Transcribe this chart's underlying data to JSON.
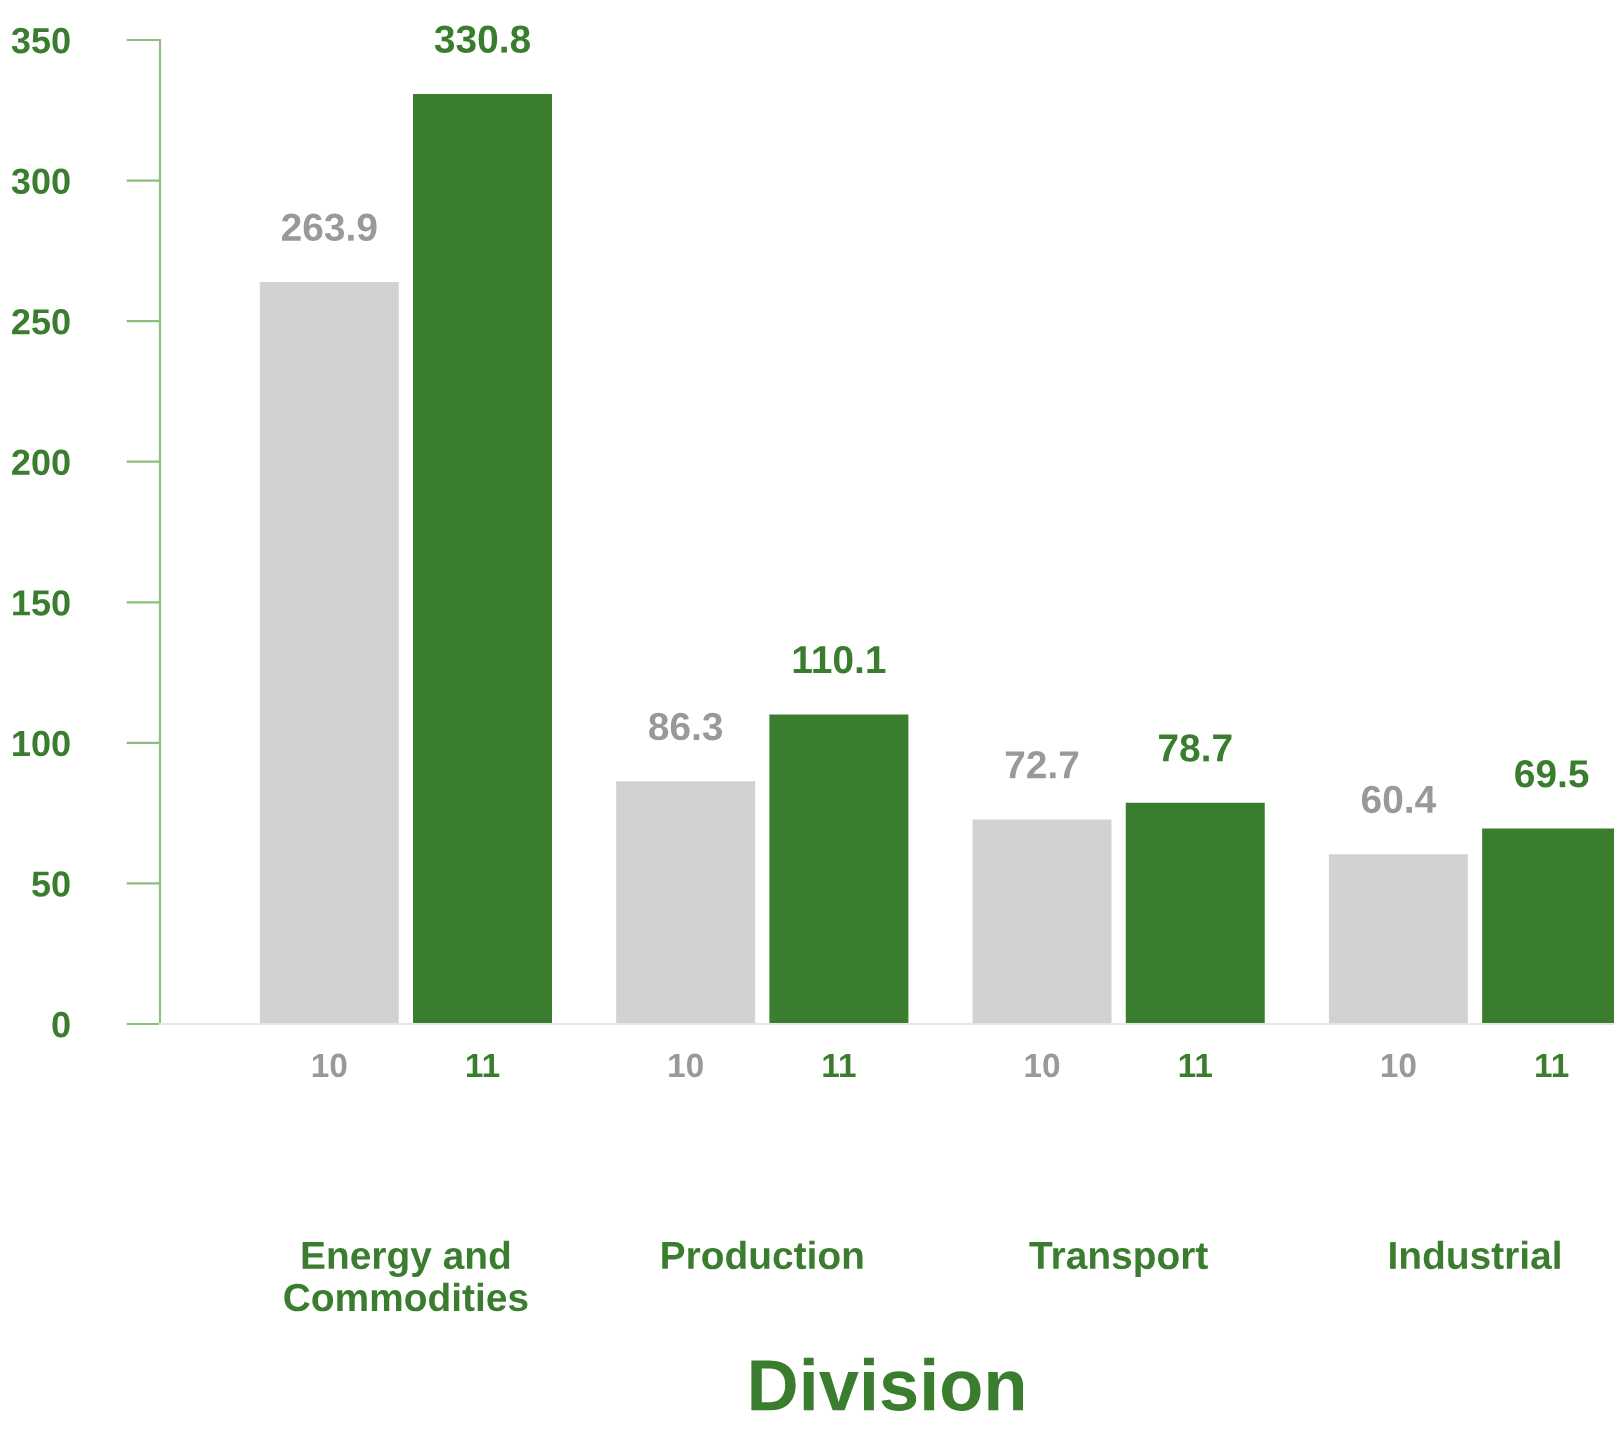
{
  "chart_data": {
    "type": "bar",
    "xlabel": "Division",
    "categories": [
      "Energy and\nCommodities",
      "Production",
      "Transport",
      "Industrial"
    ],
    "series": [
      {
        "name": "10",
        "color": "#d1d2d4",
        "values": [
          263.9,
          86.3,
          72.7,
          60.4
        ]
      },
      {
        "name": "11",
        "color": "#3a7d2e",
        "values": [
          330.8,
          110.1,
          78.7,
          69.5
        ]
      }
    ],
    "ylim": [
      0,
      350
    ],
    "yticks": [
      0,
      50,
      100,
      150,
      200,
      250,
      300,
      350
    ],
    "data_labels": true,
    "grid": false,
    "legend": false
  }
}
